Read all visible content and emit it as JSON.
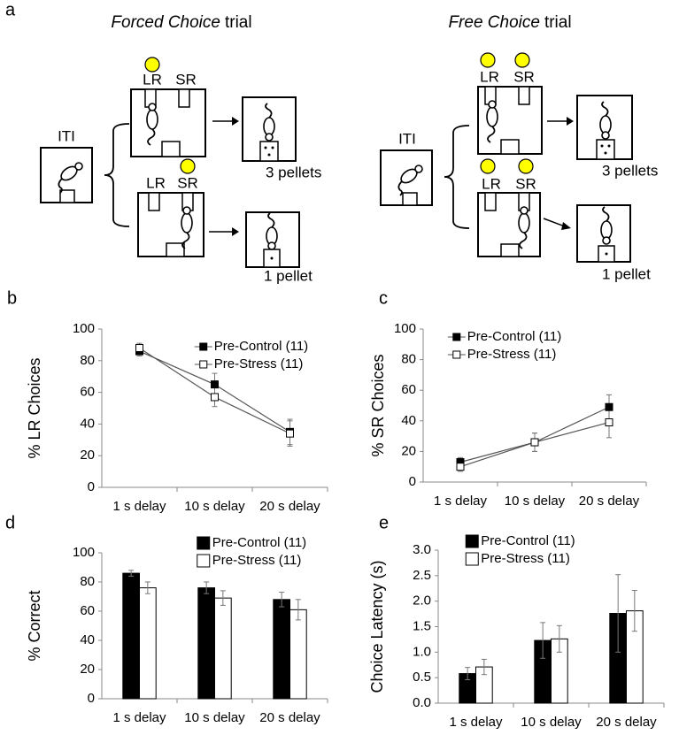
{
  "panel_a": {
    "label": "a",
    "left": {
      "title_italic": "Forced Choice",
      "title_plain": "trial",
      "iti": "ITI",
      "top_lr": "LR",
      "top_sr": "SR",
      "bottom_lr": "LR",
      "bottom_sr": "SR",
      "top_outcome": "3 pellets",
      "bottom_outcome": "1 pellet"
    },
    "right": {
      "title_italic": "Free Choice",
      "title_plain": "trial",
      "iti": "ITI",
      "top_lr": "LR",
      "top_sr": "SR",
      "bottom_lr": "LR",
      "bottom_sr": "SR",
      "top_outcome": "3 pellets",
      "bottom_outcome": "1 pellet"
    }
  },
  "chart_data": [
    {
      "type": "line",
      "label": "b",
      "y_label": "% LR Choices",
      "categories": [
        "1 s delay",
        "10 s delay",
        "20 s delay"
      ],
      "series": [
        {
          "name": "Pre-Control (11)",
          "color": "#000000",
          "values": [
            86,
            65,
            35
          ],
          "errors": [
            3,
            7,
            8
          ]
        },
        {
          "name": "Pre-Stress (11)",
          "color": "#ffffff",
          "values": [
            88,
            57,
            34
          ],
          "errors": [
            3,
            6,
            8
          ]
        }
      ],
      "ylim": [
        0,
        100
      ],
      "yticks": [
        0,
        20,
        40,
        60,
        80,
        100
      ],
      "grid": false,
      "legend": "upper right"
    },
    {
      "type": "line",
      "label": "c",
      "y_label": "% SR Choices",
      "categories": [
        "1 s delay",
        "10 s delay",
        "20 s delay"
      ],
      "series": [
        {
          "name": "Pre-Control (11)",
          "color": "#000000",
          "values": [
            13,
            26,
            49
          ],
          "errors": [
            3,
            6,
            8
          ]
        },
        {
          "name": "Pre-Stress (11)",
          "color": "#ffffff",
          "values": [
            10,
            26,
            39
          ],
          "errors": [
            3,
            6,
            10
          ]
        }
      ],
      "ylim": [
        0,
        100
      ],
      "yticks": [
        0,
        20,
        40,
        60,
        80,
        100
      ],
      "grid": false,
      "legend": "upper left"
    },
    {
      "type": "bar",
      "label": "d",
      "y_label": "% Correct",
      "categories": [
        "1 s delay",
        "10 s delay",
        "20 s delay"
      ],
      "series": [
        {
          "name": "Pre-Control (11)",
          "color": "#000000",
          "values": [
            86,
            76,
            68
          ],
          "errors": [
            2,
            4,
            5
          ]
        },
        {
          "name": "Pre-Stress (11)",
          "color": "#ffffff",
          "values": [
            76,
            69,
            61
          ],
          "errors": [
            4,
            5,
            7
          ]
        }
      ],
      "ylim": [
        0,
        100
      ],
      "yticks": [
        0,
        20,
        40,
        60,
        80,
        100
      ],
      "grid": false,
      "legend": "upper right"
    },
    {
      "type": "bar",
      "label": "e",
      "y_label": "Choice Latency (s)",
      "categories": [
        "1 s delay",
        "10 s delay",
        "20 s delay"
      ],
      "series": [
        {
          "name": "Pre-Control (11)",
          "color": "#000000",
          "values": [
            0.58,
            1.23,
            1.76
          ],
          "errors": [
            0.12,
            0.35,
            0.76
          ]
        },
        {
          "name": "Pre-Stress (11)",
          "color": "#ffffff",
          "values": [
            0.71,
            1.26,
            1.81
          ],
          "errors": [
            0.15,
            0.26,
            0.4
          ]
        }
      ],
      "ylim": [
        0,
        3
      ],
      "yticks": [
        {
          "value": 0,
          "label": "0.0"
        },
        0.5,
        {
          "value": 1,
          "label": "1.0"
        },
        1.5,
        {
          "value": 2,
          "label": "2.0"
        },
        2.5,
        {
          "value": 3,
          "label": "3.0"
        }
      ],
      "grid": false,
      "legend": "upper left"
    }
  ]
}
